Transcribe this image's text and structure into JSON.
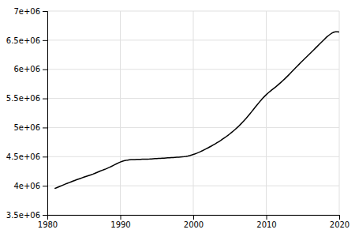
{
  "chart_data": {
    "type": "line",
    "x": [
      1981.0,
      1981.25,
      1981.5,
      1981.75,
      1982.0,
      1982.25,
      1982.5,
      1982.75,
      1983.0,
      1983.25,
      1983.5,
      1983.75,
      1984.0,
      1984.25,
      1984.5,
      1984.75,
      1985.0,
      1985.25,
      1985.5,
      1985.75,
      1986.0,
      1986.25,
      1986.5,
      1986.75,
      1987.0,
      1987.25,
      1987.5,
      1987.75,
      1988.0,
      1988.25,
      1988.5,
      1988.75,
      1989.0,
      1989.25,
      1989.5,
      1989.75,
      1990.0,
      1990.25,
      1990.5,
      1990.75,
      1991.0,
      1991.25,
      1991.5,
      1991.75,
      1992.0,
      1992.25,
      1992.5,
      1992.75,
      1993.0,
      1993.25,
      1993.5,
      1993.75,
      1994.0,
      1994.25,
      1994.5,
      1994.75,
      1995.0,
      1995.25,
      1995.5,
      1995.75,
      1996.0,
      1996.25,
      1996.5,
      1996.75,
      1997.0,
      1997.25,
      1997.5,
      1997.75,
      1998.0,
      1998.25,
      1998.5,
      1998.75,
      1999.0,
      1999.25,
      1999.5,
      1999.75,
      2000.0,
      2000.25,
      2000.5,
      2000.75,
      2001.0,
      2001.25,
      2001.5,
      2001.75,
      2002.0,
      2002.25,
      2002.5,
      2002.75,
      2003.0,
      2003.25,
      2003.5,
      2003.75,
      2004.0,
      2004.25,
      2004.5,
      2004.75,
      2005.0,
      2005.25,
      2005.5,
      2005.75,
      2006.0,
      2006.25,
      2006.5,
      2006.75,
      2007.0,
      2007.25,
      2007.5,
      2007.75,
      2008.0,
      2008.25,
      2008.5,
      2008.75,
      2009.0,
      2009.25,
      2009.5,
      2009.75,
      2010.0,
      2010.25,
      2010.5,
      2010.75,
      2011.0,
      2011.25,
      2011.5,
      2011.75,
      2012.0,
      2012.25,
      2012.5,
      2012.75,
      2013.0,
      2013.25,
      2013.5,
      2013.75,
      2014.0,
      2014.25,
      2014.5,
      2014.75,
      2015.0,
      2015.25,
      2015.5,
      2015.75,
      2016.0,
      2016.25,
      2016.5,
      2016.75,
      2017.0,
      2017.25,
      2017.5,
      2017.75,
      2018.0,
      2018.25,
      2018.5,
      2018.75,
      2019.0,
      2019.25,
      2019.5,
      2019.75,
      2020.0
    ],
    "values": [
      3952000,
      3965000,
      3978000,
      3991000,
      4004000,
      4017000,
      4030000,
      4043000,
      4055000,
      4067000,
      4079000,
      4091000,
      4103000,
      4114000,
      4125000,
      4136000,
      4147000,
      4158000,
      4168000,
      4178000,
      4188000,
      4200000,
      4213000,
      4226000,
      4239000,
      4252000,
      4265000,
      4277000,
      4289000,
      4302000,
      4316000,
      4331000,
      4347000,
      4363000,
      4378000,
      4393000,
      4407000,
      4418000,
      4428000,
      4435000,
      4441000,
      4445000,
      4448000,
      4450000,
      4451000,
      4452000,
      4453000,
      4454000,
      4455000,
      4456000,
      4457000,
      4458000,
      4459000,
      4461000,
      4463000,
      4465000,
      4467000,
      4469000,
      4471000,
      4473000,
      4475000,
      4477000,
      4479000,
      4481000,
      4483000,
      4485000,
      4487000,
      4489000,
      4491000,
      4494000,
      4497000,
      4500000,
      4504000,
      4510000,
      4518000,
      4527000,
      4537000,
      4548000,
      4560000,
      4573000,
      4587000,
      4602000,
      4618000,
      4634000,
      4650000,
      4667000,
      4684000,
      4702000,
      4720000,
      4739000,
      4758000,
      4778000,
      4799000,
      4821000,
      4843000,
      4866000,
      4890000,
      4916000,
      4942000,
      4969000,
      4997000,
      5027000,
      5058000,
      5090000,
      5123000,
      5158000,
      5195000,
      5233000,
      5272000,
      5312000,
      5351000,
      5390000,
      5428000,
      5465000,
      5500000,
      5533000,
      5564000,
      5592000,
      5619000,
      5644000,
      5668000,
      5693000,
      5719000,
      5746000,
      5774000,
      5803000,
      5832000,
      5862000,
      5893000,
      5925000,
      5958000,
      5990000,
      6022000,
      6054000,
      6086000,
      6117000,
      6148000,
      6179000,
      6210000,
      6241000,
      6271000,
      6302000,
      6333000,
      6364000,
      6395000,
      6426000,
      6457000,
      6488000,
      6519000,
      6550000,
      6576000,
      6600000,
      6621000,
      6636000,
      6643000,
      6644000,
      6640000
    ],
    "color": "#000000",
    "xlim": [
      1980,
      2020
    ],
    "ylim": [
      3500000,
      7000000
    ],
    "xticks": [
      1980,
      1990,
      2000,
      2010,
      2020
    ],
    "yticks": [
      {
        "value": 3500000,
        "label": "3.5e+06"
      },
      {
        "value": 4000000,
        "label": "4e+06"
      },
      {
        "value": 4500000,
        "label": "4.5e+06"
      },
      {
        "value": 5000000,
        "label": "5e+06"
      },
      {
        "value": 5500000,
        "label": "5.5e+06"
      },
      {
        "value": 6000000,
        "label": "6e+06"
      },
      {
        "value": 6500000,
        "label": "6.5e+06"
      },
      {
        "value": 7000000,
        "label": "7e+06"
      }
    ],
    "grid": true
  }
}
